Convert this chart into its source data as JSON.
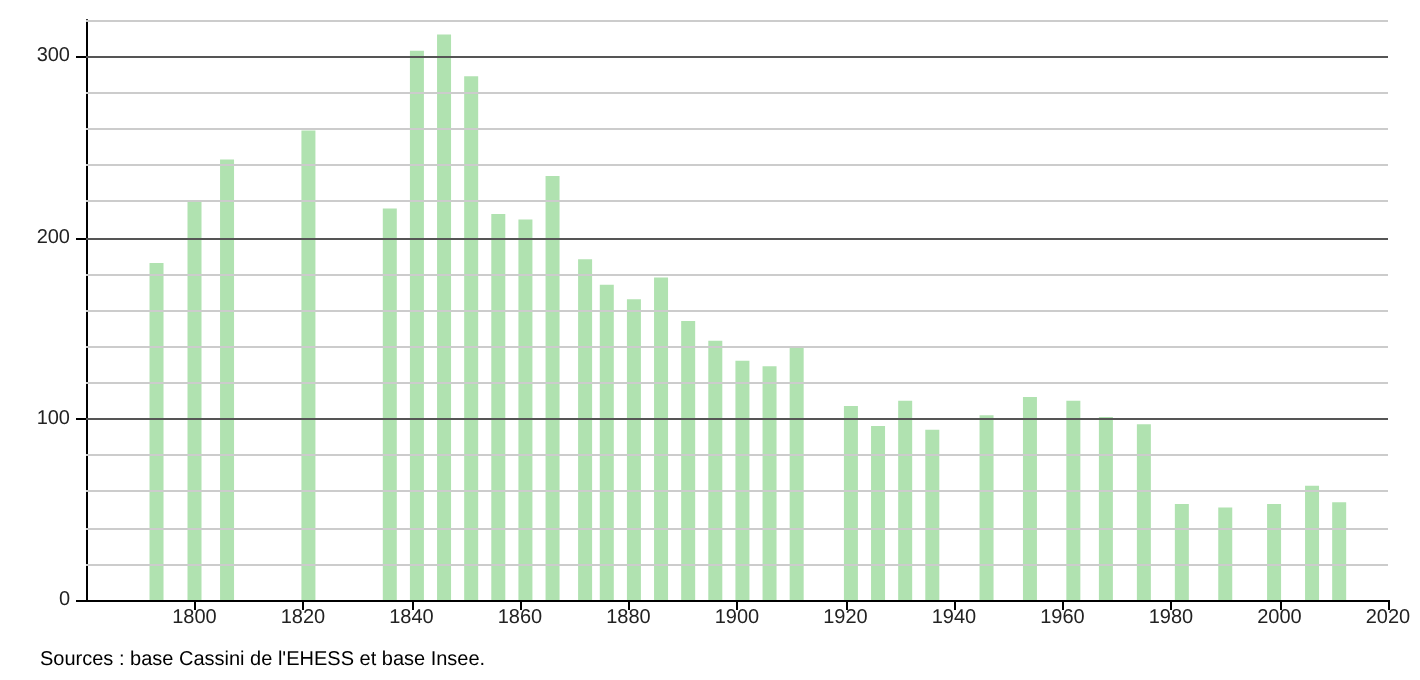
{
  "chart_data": {
    "type": "bar",
    "x": [
      1793,
      1800,
      1806,
      1821,
      1836,
      1841,
      1846,
      1851,
      1856,
      1861,
      1866,
      1872,
      1876,
      1881,
      1886,
      1891,
      1896,
      1901,
      1906,
      1911,
      1921,
      1926,
      1931,
      1936,
      1946,
      1954,
      1962,
      1968,
      1975,
      1982,
      1990,
      1999,
      2006,
      2011
    ],
    "values": [
      186,
      220,
      243,
      259,
      216,
      303,
      312,
      289,
      213,
      210,
      234,
      188,
      174,
      166,
      178,
      154,
      143,
      132,
      129,
      140,
      107,
      96,
      110,
      94,
      102,
      112,
      110,
      101,
      97,
      53,
      51,
      53,
      63,
      54
    ],
    "color": "#b0e2b0",
    "xlim": [
      1780,
      2020
    ],
    "xticks": [
      1800,
      1820,
      1840,
      1860,
      1880,
      1900,
      1920,
      1940,
      1960,
      1980,
      2000,
      2020
    ],
    "ylim": [
      0,
      320
    ],
    "yticks": [
      0,
      100,
      200,
      300
    ],
    "grid": "y",
    "annotations": [
      "Sources : base Cassini de l'EHESS et base Insee."
    ]
  }
}
